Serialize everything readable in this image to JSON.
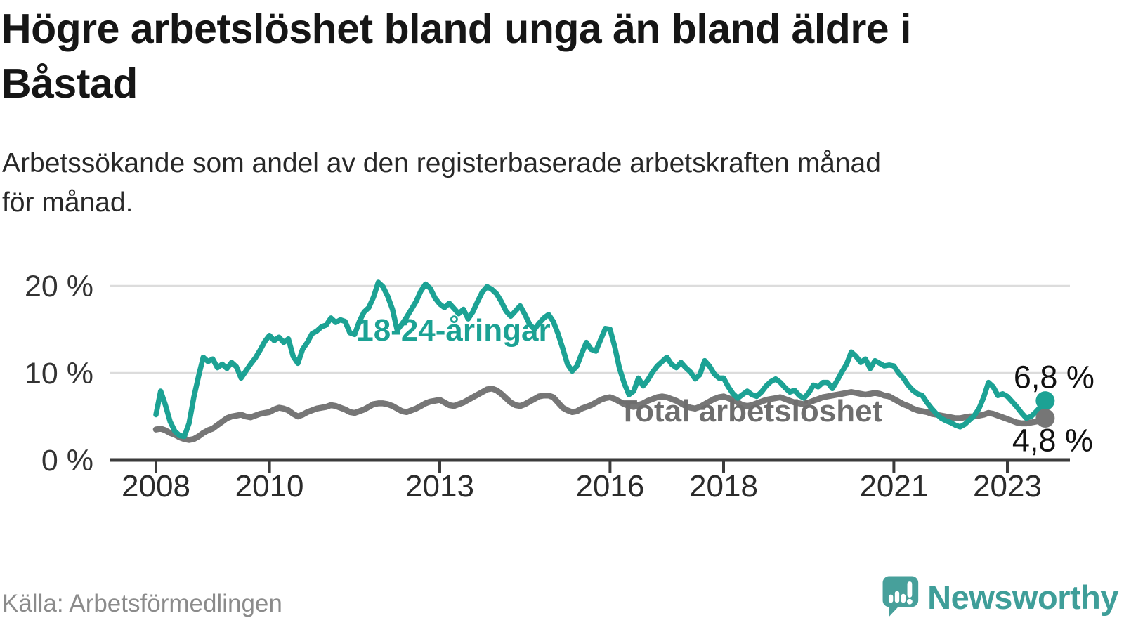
{
  "header": {
    "title": "Högre arbetslöshet bland unga än bland äldre i\nBåstad",
    "subtitle": "Arbetssökande som andel av den registerbaserade arbetskraften månad\nför månad."
  },
  "footer": {
    "source": "Källa: Arbetsförmedlingen",
    "brand": "Newsworthy"
  },
  "colors": {
    "youth": "#1ca294",
    "total_line": "#767676",
    "total_label": "#6e6e6e",
    "axis": "#3b3b3b",
    "grid": "#dcdcdc",
    "end_label_text": "#111111",
    "brand_teal": "#3f9e99",
    "brand_bubble": "#47a09b"
  },
  "chart_data": {
    "type": "line",
    "title": "Högre arbetslöshet bland unga än bland äldre i Båstad",
    "xlabel": "",
    "ylabel": "Arbetssökande som andel av den registerbaserade arbetskraften (%)",
    "unit": "%",
    "frequency": "monthly",
    "x_start": "2008-01",
    "x_end": "2023-09",
    "ylim": [
      0,
      22
    ],
    "grid": "horizontal",
    "legend_position": "inline-annotations",
    "y_ticks": [
      {
        "value": 0,
        "label": "0 %"
      },
      {
        "value": 10,
        "label": "10 %"
      },
      {
        "value": 20,
        "label": "20 %"
      }
    ],
    "x_ticks": [
      {
        "year": 2008,
        "label": "2008"
      },
      {
        "year": 2010,
        "label": "2010"
      },
      {
        "year": 2013,
        "label": "2013"
      },
      {
        "year": 2016,
        "label": "2016"
      },
      {
        "year": 2018,
        "label": "2018"
      },
      {
        "year": 2021,
        "label": "2021"
      },
      {
        "year": 2023,
        "label": "2023"
      }
    ],
    "annotations": [
      {
        "text": "18-24-åringar",
        "x": 2011.53,
        "y": 13.7,
        "color": "#1ca294"
      },
      {
        "text": "Total arbetslöshet",
        "x": 2016.15,
        "y": 4.45,
        "color": "#6e6e6e"
      }
    ],
    "series": [
      {
        "name": "18-24-åringar",
        "color": "#1ca294",
        "end_value": 6.8,
        "end_label": "6,8 %",
        "values": [
          5.2,
          7.9,
          6.3,
          4.4,
          3.3,
          2.8,
          2.7,
          4.2,
          7.2,
          9.6,
          11.8,
          11.3,
          11.6,
          10.6,
          11.0,
          10.5,
          11.2,
          10.7,
          9.4,
          10.2,
          11.0,
          11.7,
          12.6,
          13.6,
          14.3,
          13.7,
          14.1,
          13.5,
          13.9,
          11.9,
          11.1,
          12.7,
          13.5,
          14.5,
          14.8,
          15.3,
          15.5,
          16.3,
          15.8,
          16.1,
          15.9,
          14.6,
          14.4,
          15.9,
          17.0,
          17.5,
          18.7,
          20.4,
          19.9,
          18.8,
          17.3,
          14.9,
          15.6,
          16.4,
          17.3,
          18.2,
          19.4,
          20.2,
          19.7,
          18.6,
          17.9,
          17.5,
          18.0,
          17.4,
          16.8,
          17.3,
          16.2,
          17.0,
          18.2,
          19.3,
          19.9,
          19.6,
          19.1,
          18.2,
          17.1,
          16.5,
          17.1,
          17.7,
          16.7,
          15.6,
          15.0,
          15.7,
          16.3,
          16.7,
          15.9,
          14.5,
          12.8,
          11.0,
          10.2,
          10.8,
          12.2,
          13.5,
          12.7,
          12.5,
          13.8,
          15.1,
          15.0,
          13.0,
          10.5,
          8.8,
          7.5,
          7.9,
          9.4,
          8.5,
          9.2,
          10.1,
          10.8,
          11.3,
          11.8,
          11.0,
          10.6,
          11.2,
          10.6,
          10.1,
          9.3,
          9.8,
          11.4,
          10.8,
          9.9,
          9.4,
          9.4,
          8.4,
          7.6,
          7.1,
          7.5,
          7.9,
          7.5,
          7.3,
          7.8,
          8.5,
          9.0,
          9.3,
          8.9,
          8.3,
          7.8,
          8.0,
          7.4,
          7.1,
          7.7,
          8.6,
          8.4,
          8.9,
          8.9,
          8.2,
          9.1,
          10.1,
          11.0,
          12.4,
          11.9,
          11.2,
          11.6,
          10.5,
          11.4,
          11.1,
          10.8,
          10.9,
          10.8,
          10.0,
          9.4,
          8.6,
          8.0,
          7.6,
          7.4,
          6.6,
          5.9,
          5.3,
          4.8,
          4.5,
          4.3,
          4.0,
          3.8,
          4.1,
          4.6,
          5.1,
          5.9,
          7.2,
          8.9,
          8.4,
          7.4,
          7.6,
          7.3,
          6.7,
          6.1,
          5.4,
          4.8,
          5.0,
          5.5,
          6.1,
          6.8
        ]
      },
      {
        "name": "Total arbetslöshet",
        "color": "#767676",
        "end_value": 4.8,
        "end_label": "4,8 %",
        "values": [
          3.5,
          3.6,
          3.4,
          3.1,
          2.9,
          2.6,
          2.4,
          2.3,
          2.4,
          2.7,
          3.1,
          3.4,
          3.6,
          4.0,
          4.4,
          4.8,
          5.0,
          5.1,
          5.2,
          5.0,
          4.9,
          5.1,
          5.3,
          5.4,
          5.5,
          5.8,
          6.0,
          5.9,
          5.7,
          5.3,
          5.0,
          5.2,
          5.5,
          5.7,
          5.9,
          6.0,
          6.1,
          6.3,
          6.2,
          6.0,
          5.8,
          5.5,
          5.4,
          5.6,
          5.8,
          6.1,
          6.4,
          6.5,
          6.5,
          6.4,
          6.2,
          5.9,
          5.6,
          5.5,
          5.7,
          5.9,
          6.2,
          6.5,
          6.7,
          6.8,
          6.9,
          6.6,
          6.3,
          6.2,
          6.4,
          6.6,
          6.9,
          7.2,
          7.5,
          7.8,
          8.1,
          8.2,
          8.0,
          7.6,
          7.1,
          6.6,
          6.3,
          6.2,
          6.4,
          6.7,
          7.0,
          7.3,
          7.4,
          7.4,
          7.2,
          6.6,
          6.0,
          5.7,
          5.5,
          5.6,
          5.9,
          6.1,
          6.3,
          6.6,
          6.9,
          7.1,
          7.2,
          7.0,
          6.7,
          6.4,
          6.2,
          6.1,
          6.3,
          6.5,
          6.8,
          7.0,
          7.2,
          7.3,
          7.2,
          7.0,
          6.8,
          6.5,
          6.2,
          6.0,
          5.9,
          6.1,
          6.4,
          6.7,
          7.0,
          7.2,
          7.3,
          7.1,
          6.9,
          6.6,
          6.3,
          6.2,
          6.3,
          6.5,
          6.7,
          6.9,
          7.0,
          7.1,
          7.2,
          7.0,
          6.8,
          6.6,
          6.5,
          6.4,
          6.6,
          6.8,
          7.0,
          7.2,
          7.3,
          7.4,
          7.5,
          7.6,
          7.7,
          7.8,
          7.7,
          7.6,
          7.5,
          7.6,
          7.7,
          7.6,
          7.4,
          7.3,
          7.0,
          6.7,
          6.4,
          6.2,
          5.9,
          5.7,
          5.6,
          5.5,
          5.3,
          5.2,
          5.1,
          5.0,
          4.9,
          4.8,
          4.8,
          4.9,
          5.0,
          5.0,
          5.1,
          5.2,
          5.4,
          5.3,
          5.1,
          4.9,
          4.7,
          4.5,
          4.3,
          4.2,
          4.2,
          4.3,
          4.4,
          4.5,
          4.8
        ]
      }
    ]
  }
}
